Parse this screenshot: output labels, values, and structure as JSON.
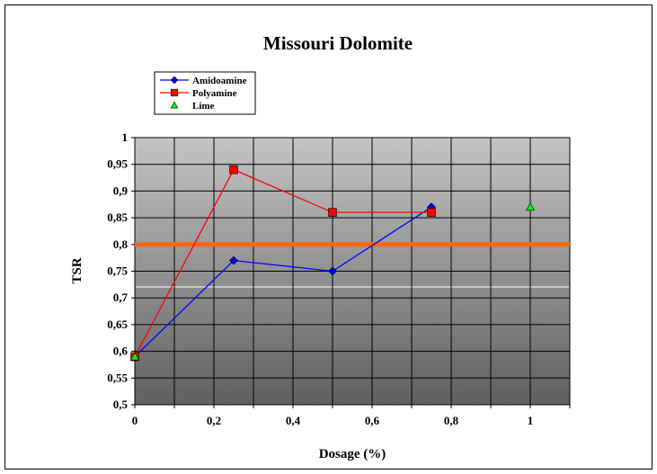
{
  "chart_data": {
    "type": "scatter",
    "title": "Missouri Dolomite",
    "xlabel": "Dosage (%)",
    "ylabel": "TSR",
    "xlim": [
      0,
      1.1
    ],
    "ylim": [
      0.5,
      1.0
    ],
    "x_ticks": [
      0,
      0.2,
      0.4,
      0.6,
      0.8,
      1
    ],
    "x_tick_labels": [
      "0",
      "0,2",
      "0,4",
      "0,6",
      "0,8",
      "1"
    ],
    "y_ticks": [
      0.5,
      0.55,
      0.6,
      0.65,
      0.7,
      0.75,
      0.8,
      0.85,
      0.9,
      0.95,
      1.0
    ],
    "y_tick_labels": [
      "0,5",
      "0,55",
      "0,6",
      "0,65",
      "0,7",
      "0,75",
      "0,8",
      "0,85",
      "0,9",
      "0,95",
      "1"
    ],
    "grid": true,
    "legend_position": "top-left",
    "series": [
      {
        "name": "Amidoamine",
        "color": "#0000ff",
        "marker": "diamond",
        "line": true,
        "points": [
          [
            0,
            0.59
          ],
          [
            0.25,
            0.77
          ],
          [
            0.5,
            0.75
          ],
          [
            0.75,
            0.87
          ]
        ]
      },
      {
        "name": "Polyamine",
        "color": "#ff0000",
        "marker": "square",
        "line": true,
        "points": [
          [
            0,
            0.59
          ],
          [
            0.25,
            0.94
          ],
          [
            0.5,
            0.86
          ],
          [
            0.75,
            0.86
          ]
        ]
      },
      {
        "name": "Lime",
        "color": "#00ff00",
        "marker": "triangle",
        "line": false,
        "points": [
          [
            0,
            0.59
          ],
          [
            1,
            0.87
          ]
        ]
      }
    ],
    "reference_line": {
      "y": 0.8,
      "color": "#ff6600"
    }
  }
}
